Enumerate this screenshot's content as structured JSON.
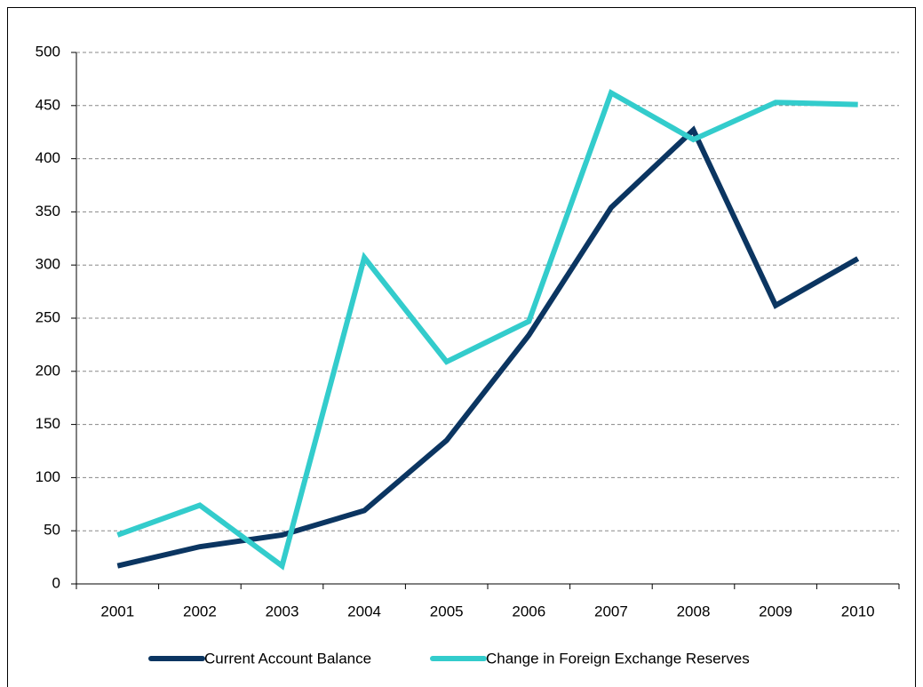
{
  "chart_data": {
    "type": "line",
    "categories": [
      "2001",
      "2002",
      "2003",
      "2004",
      "2005",
      "2006",
      "2007",
      "2008",
      "2009",
      "2010"
    ],
    "series": [
      {
        "name": "Current Account Balance",
        "color": "#0b3561",
        "values": [
          17,
          35,
          46,
          69,
          135,
          234,
          354,
          427,
          262,
          306
        ]
      },
      {
        "name": "Change in Foreign Exchange Reserves",
        "color": "#33cccc",
        "values": [
          46,
          74,
          17,
          307,
          209,
          247,
          462,
          418,
          453,
          451
        ]
      }
    ],
    "ylim": [
      0,
      500
    ],
    "yticks": [
      0,
      50,
      100,
      150,
      200,
      250,
      300,
      350,
      400,
      450,
      500
    ],
    "grid": true,
    "legend": "bottom"
  }
}
